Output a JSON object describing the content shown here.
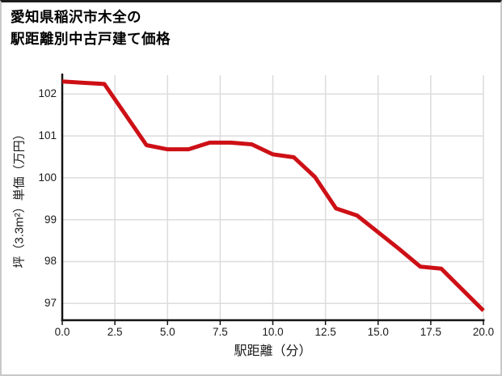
{
  "title": {
    "line1": "愛知県稲沢市木全の",
    "line2": "駅距離別中古戸建て価格"
  },
  "chart_data": {
    "type": "line",
    "title": "愛知県稲沢市木全の駅距離別中古戸建て価格",
    "xlabel": "駅距離（分）",
    "ylabel": "坪（3.3m²）単価（万円）",
    "x": [
      0,
      1,
      2,
      3,
      4,
      5,
      6,
      7,
      8,
      9,
      10,
      11,
      12,
      13,
      14,
      15,
      16,
      17,
      18,
      19,
      20
    ],
    "y": [
      102.3,
      102.27,
      102.24,
      101.51,
      100.78,
      100.68,
      100.68,
      100.84,
      100.84,
      100.8,
      100.56,
      100.49,
      100.02,
      99.27,
      99.1,
      98.7,
      98.3,
      97.88,
      97.83,
      97.33,
      96.83
    ],
    "xlim": [
      0,
      20
    ],
    "ylim": [
      96.6,
      102.45
    ],
    "xtick_values": [
      0,
      2.5,
      5,
      7.5,
      10,
      12.5,
      15,
      17.5,
      20
    ],
    "xtick_labels": [
      "0.0",
      "2.5",
      "5.0",
      "7.5",
      "10.0",
      "12.5",
      "15.0",
      "17.5",
      "20.0"
    ],
    "ytick_values": [
      97,
      98,
      99,
      100,
      101,
      102
    ],
    "ytick_labels": [
      "97",
      "98",
      "99",
      "100",
      "101",
      "102"
    ],
    "grid": true,
    "legend": "none",
    "line_color": "#cd1016",
    "grid_color": "#dcdcdc",
    "axis_color": "#141414",
    "tick_color": "#1a1a1a"
  }
}
